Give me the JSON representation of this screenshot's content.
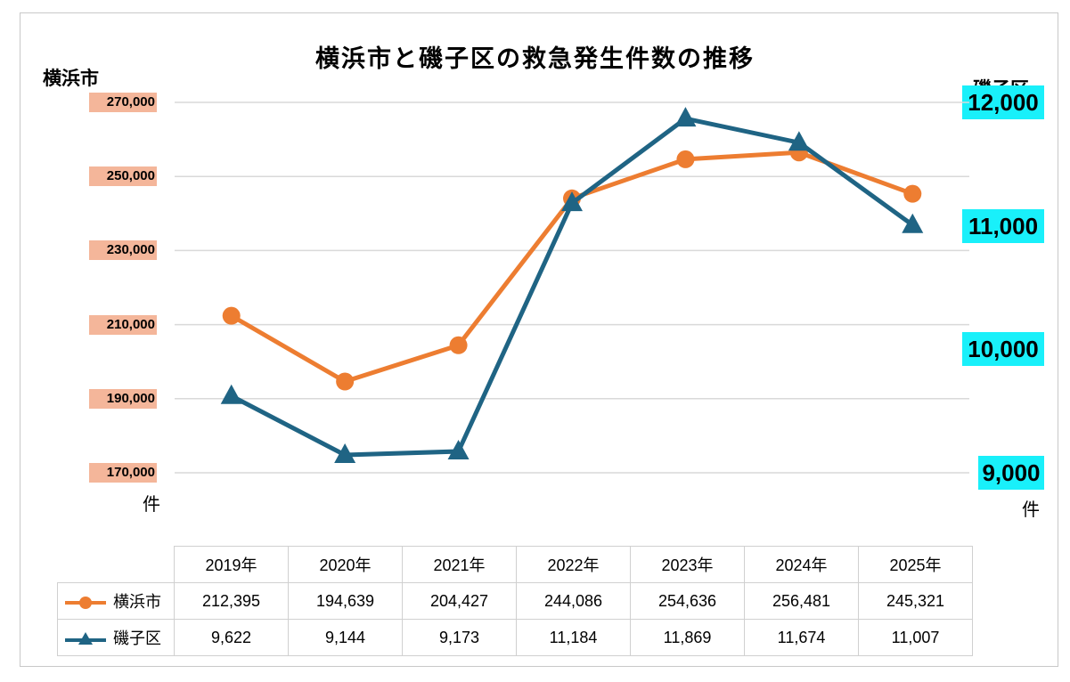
{
  "chart_data": {
    "type": "line",
    "title": "横浜市と磯子区の救急発生件数の推移",
    "categories": [
      "2019年",
      "2020年",
      "2021年",
      "2022年",
      "2023年",
      "2024年",
      "2025年"
    ],
    "series": [
      {
        "name": "横浜市",
        "axis": "left",
        "color": "#ED7D31",
        "marker": "circle",
        "values": [
          212395,
          194639,
          204427,
          244086,
          254636,
          256481,
          245321
        ]
      },
      {
        "name": "磯子区",
        "axis": "right",
        "color": "#1F6484",
        "marker": "triangle",
        "values": [
          9622,
          9144,
          9173,
          11184,
          11869,
          11674,
          11007
        ]
      }
    ],
    "left_axis": {
      "title": "横浜市",
      "unit": "件",
      "ylim": [
        170000,
        270000
      ],
      "ticks": [
        "270,000",
        "250,000",
        "230,000",
        "210,000",
        "190,000",
        "170,000"
      ],
      "tick_values": [
        270000,
        250000,
        230000,
        210000,
        190000,
        170000
      ],
      "tick_bg": "#F4B69A"
    },
    "right_axis": {
      "title": "磯子区",
      "unit": "件",
      "ylim": [
        9000,
        12000
      ],
      "ticks": [
        "12,000",
        "11,000",
        "10,000",
        "9,000"
      ],
      "tick_values": [
        12000,
        11000,
        10000,
        9000
      ],
      "tick_bg": "#19F0FA"
    },
    "grid": true,
    "table": {
      "rows": [
        {
          "label": "横浜市",
          "values": [
            "212,395",
            "194,639",
            "204,427",
            "244,086",
            "254,636",
            "256,481",
            "245,321"
          ]
        },
        {
          "label": "磯子区",
          "values": [
            "9,622",
            "9,144",
            "9,173",
            "11,184",
            "11,869",
            "11,674",
            "11,007"
          ]
        }
      ]
    }
  }
}
